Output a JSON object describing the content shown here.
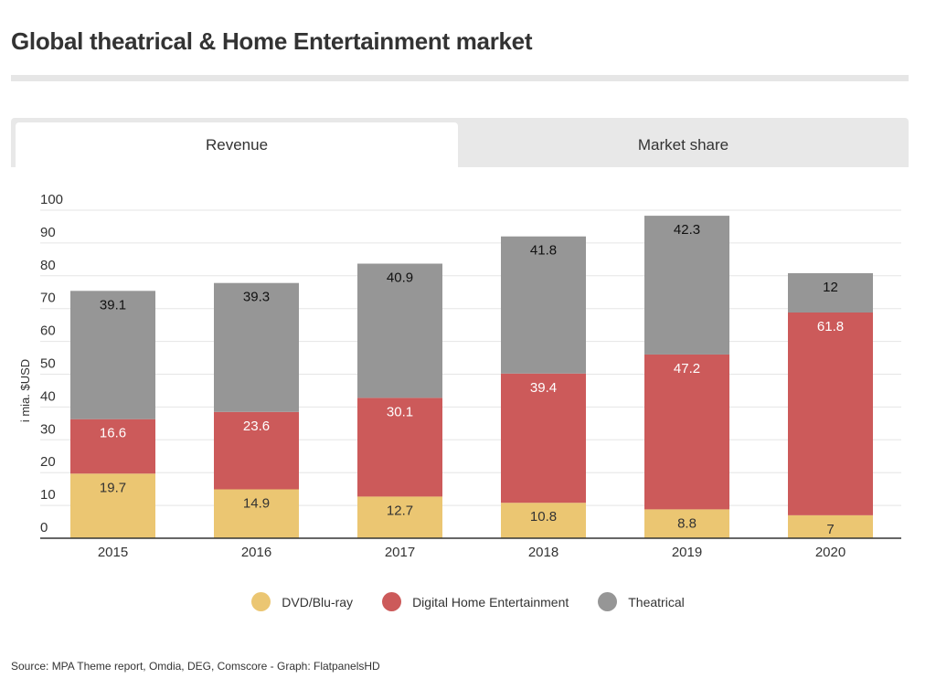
{
  "title": "Global theatrical & Home Entertainment market",
  "tabs": [
    {
      "label": "Revenue",
      "active": true
    },
    {
      "label": "Market share",
      "active": false
    }
  ],
  "source": "Source: MPA Theme report, Omdia, DEG, Comscore - Graph: FlatpanelsHD",
  "chart_data": {
    "type": "bar",
    "stacked": true,
    "categories": [
      "2015",
      "2016",
      "2017",
      "2018",
      "2019",
      "2020"
    ],
    "series": [
      {
        "name": "DVD/Blu-ray",
        "color": "#ebc672",
        "label_color": "#333333",
        "values": [
          19.7,
          14.9,
          12.7,
          10.8,
          8.8,
          7
        ]
      },
      {
        "name": "Digital Home Entertainment",
        "color": "#cc5a5a",
        "label_color": "#ffffff",
        "values": [
          16.6,
          23.6,
          30.1,
          39.4,
          47.2,
          61.8
        ]
      },
      {
        "name": "Theatrical",
        "color": "#969696",
        "label_color": "#111111",
        "values": [
          39.1,
          39.3,
          40.9,
          41.8,
          42.3,
          12
        ]
      }
    ],
    "ylabel": "i mia. $USD",
    "xlabel": "",
    "ylim": [
      0,
      100
    ],
    "yticks": [
      0,
      10,
      20,
      30,
      40,
      50,
      60,
      70,
      80,
      90,
      100
    ],
    "grid": true,
    "legend_position": "bottom"
  }
}
